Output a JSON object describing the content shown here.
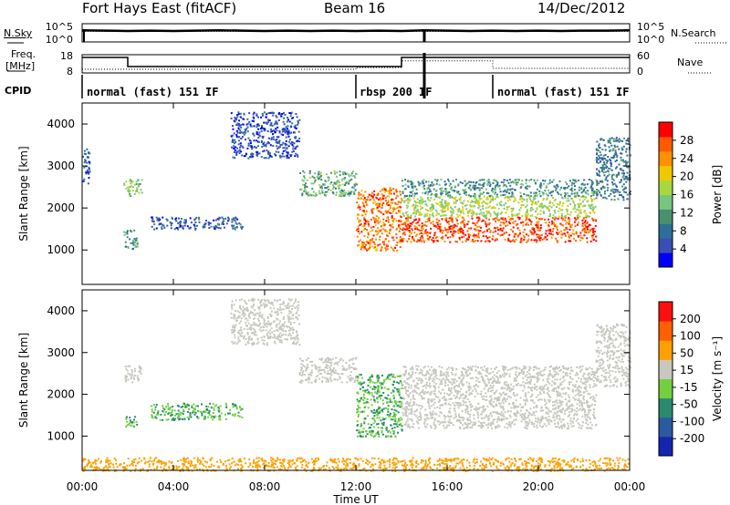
{
  "header": {
    "station": "Fort Hays East (fitACF)",
    "beam": "Beam 16",
    "date": "14/Dec/2012"
  },
  "noise": {
    "left_label": "N.Sky",
    "right_label": "N.Search",
    "left_ticks": [
      "10^5",
      "10^0"
    ],
    "right_ticks": [
      "10^5",
      "10^0"
    ]
  },
  "freq": {
    "left_label": "Freq.",
    "left_unit": "[MHz]",
    "right_label": "Nave",
    "left_ticks": [
      "18",
      "8"
    ],
    "right_ticks": [
      "60",
      "0"
    ]
  },
  "cpid": {
    "label": "CPID",
    "segments": [
      {
        "start_hr": 0,
        "end_hr": 12,
        "text": "normal (fast) 151 IF"
      },
      {
        "start_hr": 12,
        "end_hr": 18,
        "text": "rbsp 200 IF"
      },
      {
        "start_hr": 18,
        "end_hr": 24,
        "text": "normal (fast) 151 IF"
      }
    ]
  },
  "time_axis": {
    "label": "Time UT",
    "ticks": [
      "00:00",
      "04:00",
      "08:00",
      "12:00",
      "16:00",
      "20:00",
      "00:00"
    ]
  },
  "power_colorbar": {
    "title": "Power [dB]",
    "ticks": [
      "28",
      "24",
      "20",
      "16",
      "12",
      "8",
      "4"
    ],
    "colors": [
      "#0000ff",
      "#3a4fb5",
      "#2e6f9a",
      "#4a9070",
      "#76c67e",
      "#a8d840",
      "#f0c800",
      "#ff9000",
      "#ff5a00",
      "#ff0000"
    ]
  },
  "velocity_colorbar": {
    "title": "Velocity [m s⁻¹]",
    "ticks": [
      "200",
      "100",
      "50",
      "15",
      "-15",
      "-50",
      "-100",
      "-200"
    ],
    "colors": [
      "#1525b0",
      "#2a5aa0",
      "#2a8a70",
      "#72d040",
      "#c8c8c0",
      "#ffa000",
      "#ff6000",
      "#ff1010"
    ]
  },
  "chart_data": [
    {
      "type": "line",
      "panel": "noise",
      "x_unit": "hours UT",
      "xlim": [
        0,
        24
      ],
      "series": [
        {
          "name": "N.Sky",
          "x": [
            0,
            1,
            2,
            3,
            4,
            5,
            6,
            7,
            8,
            9,
            10,
            11,
            12,
            13,
            14,
            15,
            16,
            17,
            18,
            19,
            20,
            21,
            22,
            23,
            24
          ],
          "y": [
            3.2,
            3.1,
            3.0,
            3.1,
            3.0,
            3.1,
            3.2,
            3.1,
            3.0,
            3.1,
            3.0,
            3.1,
            3.0,
            3.1,
            3.0,
            3.2,
            3.1,
            3.0,
            3.1,
            3.0,
            3.1,
            3.0,
            3.1,
            3.1,
            3.2
          ]
        }
      ]
    },
    {
      "type": "line",
      "panel": "frequency",
      "x_unit": "hours UT",
      "xlim": [
        0,
        24
      ],
      "series": [
        {
          "name": "Freq.",
          "x": [
            0,
            2,
            2,
            14,
            14,
            15,
            15,
            24
          ],
          "y": [
            16.5,
            16.5,
            11.5,
            11.5,
            16.5,
            16.5,
            16.5,
            16.5
          ]
        },
        {
          "name": "Nave",
          "x": [
            0,
            12,
            12,
            14,
            14,
            18,
            18,
            24
          ],
          "y": [
            12,
            12,
            18,
            18,
            40,
            40,
            15,
            15
          ]
        }
      ]
    },
    {
      "type": "heatmap",
      "panel": "power",
      "x_unit": "hours UT",
      "xlim": [
        0,
        24
      ],
      "ylim": [
        180,
        4500
      ],
      "ylabel": "Slant Range [km]",
      "yticks": [
        1000,
        2000,
        3000,
        4000
      ],
      "regions": [
        {
          "t": [
            0.0,
            0.3
          ],
          "r": [
            2600,
            3500
          ],
          "v": 6
        },
        {
          "t": [
            1.8,
            2.6
          ],
          "r": [
            2300,
            2700
          ],
          "v": 14
        },
        {
          "t": [
            1.8,
            2.4
          ],
          "r": [
            1000,
            1500
          ],
          "v": 10
        },
        {
          "t": [
            3.0,
            7.0
          ],
          "r": [
            1500,
            1800
          ],
          "v": 6
        },
        {
          "t": [
            6.5,
            9.5
          ],
          "r": [
            3200,
            4300
          ],
          "v": 5
        },
        {
          "t": [
            9.5,
            12.0
          ],
          "r": [
            2300,
            2900
          ],
          "v": 12
        },
        {
          "t": [
            12.0,
            14.0
          ],
          "r": [
            1000,
            2500
          ],
          "v": 24
        },
        {
          "t": [
            14.0,
            22.5
          ],
          "r": [
            1200,
            1800
          ],
          "v": 26
        },
        {
          "t": [
            14.0,
            22.5
          ],
          "r": [
            1800,
            2300
          ],
          "v": 16
        },
        {
          "t": [
            14.0,
            22.5
          ],
          "r": [
            2300,
            2700
          ],
          "v": 10
        },
        {
          "t": [
            22.5,
            24.0
          ],
          "r": [
            2200,
            3700
          ],
          "v": 8
        }
      ]
    },
    {
      "type": "heatmap",
      "panel": "velocity",
      "x_unit": "hours UT",
      "xlim": [
        0,
        24
      ],
      "ylim": [
        180,
        4500
      ],
      "ylabel": "Slant Range [km]",
      "yticks": [
        1000,
        2000,
        3000,
        4000
      ],
      "regions": [
        {
          "t": [
            1.8,
            2.6
          ],
          "r": [
            2300,
            2700
          ],
          "v": 0
        },
        {
          "t": [
            1.8,
            2.4
          ],
          "r": [
            1200,
            1500
          ],
          "v": 30
        },
        {
          "t": [
            3.0,
            7.0
          ],
          "r": [
            1400,
            1800
          ],
          "v": 30
        },
        {
          "t": [
            6.5,
            9.5
          ],
          "r": [
            3200,
            4300
          ],
          "v": 0
        },
        {
          "t": [
            9.5,
            12.0
          ],
          "r": [
            2300,
            2900
          ],
          "v": 0
        },
        {
          "t": [
            12.0,
            14.0
          ],
          "r": [
            1000,
            2500
          ],
          "v": 30
        },
        {
          "t": [
            14.0,
            22.5
          ],
          "r": [
            1200,
            2700
          ],
          "v": 0
        },
        {
          "t": [
            22.5,
            24.0
          ],
          "r": [
            2200,
            3700
          ],
          "v": 0
        },
        {
          "t": [
            0.0,
            24.0
          ],
          "r": [
            180,
            500
          ],
          "v": -40
        }
      ]
    }
  ]
}
